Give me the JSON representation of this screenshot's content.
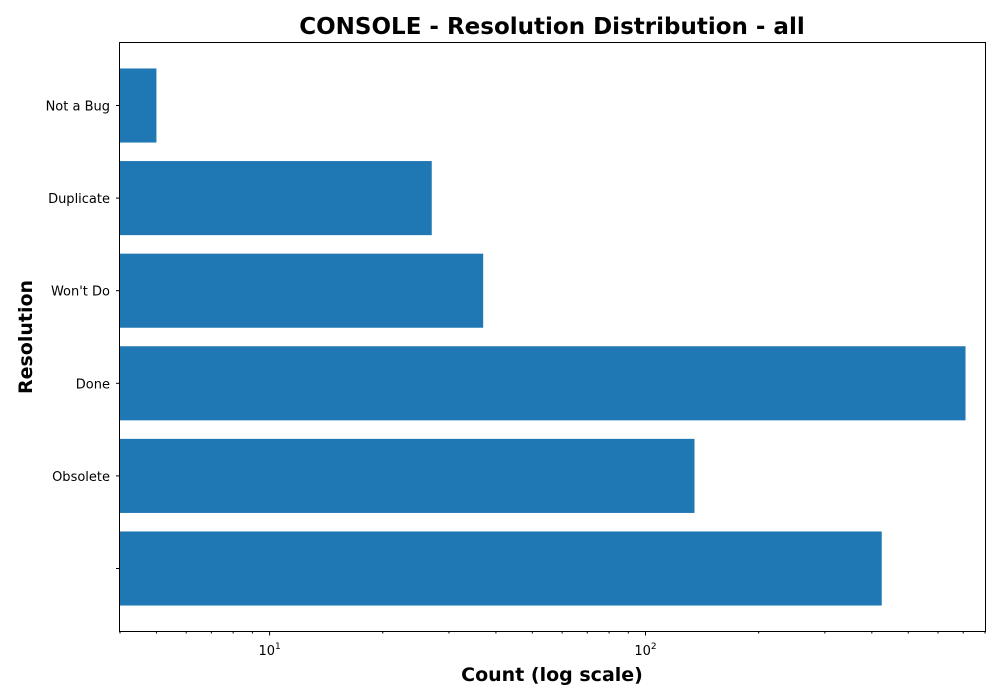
{
  "chart_data": {
    "type": "bar",
    "orientation": "horizontal",
    "title": "CONSOLE - Resolution Distribution - all",
    "xlabel": "Count (log scale)",
    "ylabel": "Resolution",
    "x_scale": "log",
    "xlim": [
      4,
      800
    ],
    "x_major_ticks": [
      {
        "value": 10,
        "base": "10",
        "exp": "1"
      },
      {
        "value": 100,
        "base": "10",
        "exp": "2"
      }
    ],
    "categories": [
      "",
      "Obsolete",
      "Done",
      "Won't Do",
      "Duplicate",
      "Not a Bug"
    ],
    "values": [
      425,
      135,
      710,
      37,
      27,
      5
    ],
    "bar_color": "#1f77b4",
    "grid": false,
    "legend": "none"
  }
}
